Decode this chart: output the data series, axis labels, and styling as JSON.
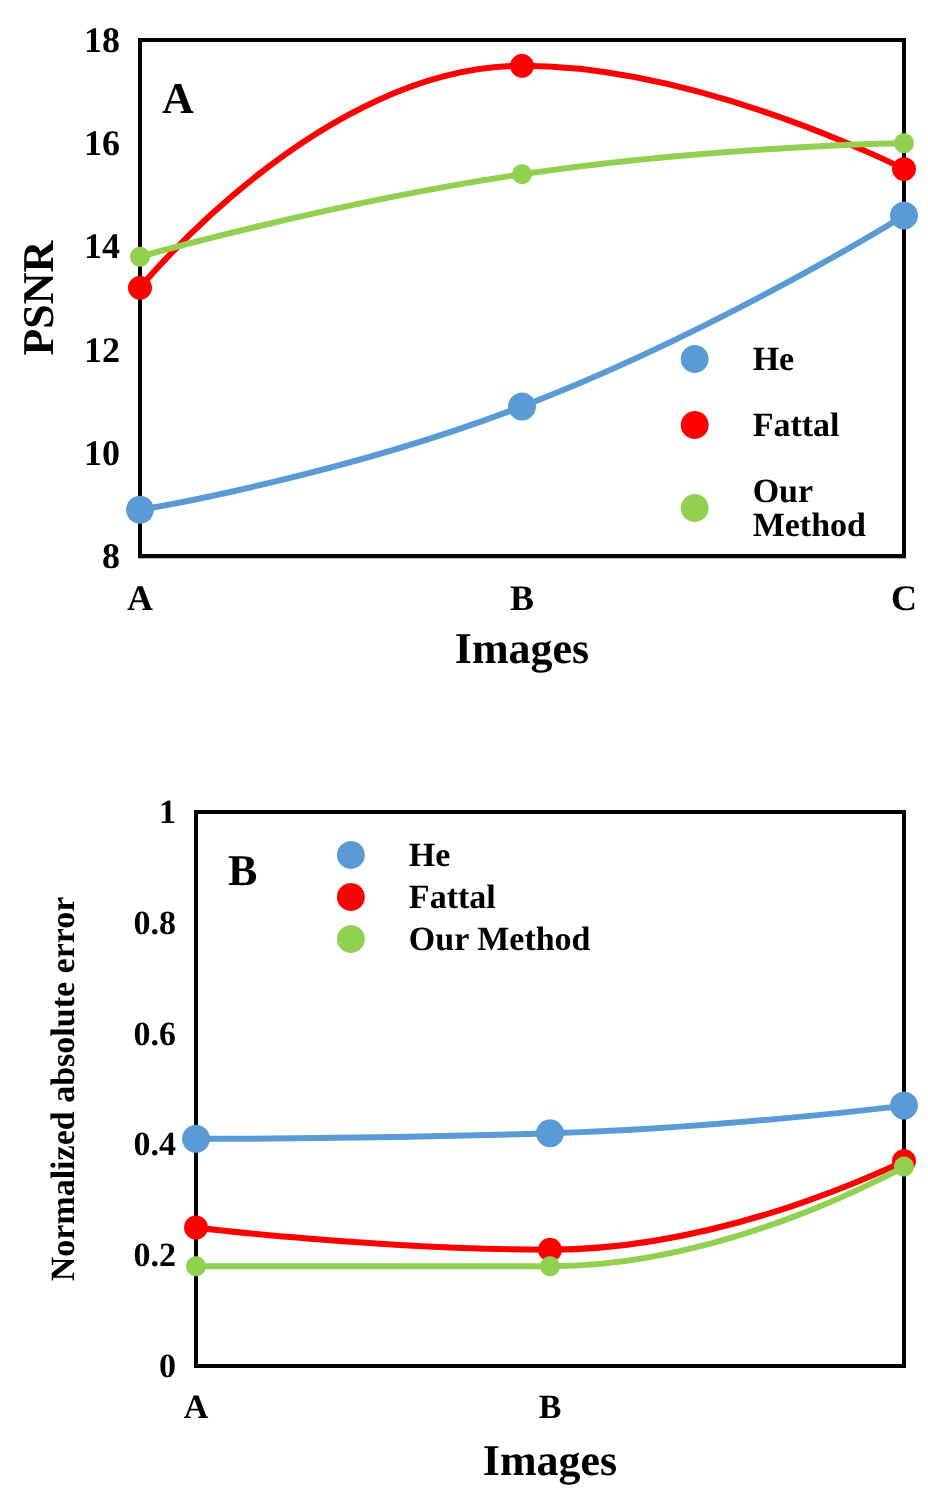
{
  "chart_data": [
    {
      "type": "line",
      "categories": [
        "A",
        "B",
        "C"
      ],
      "xlabel": "Images",
      "ylabel": "PSNR",
      "annotations": [
        "A"
      ],
      "ylim": [
        8,
        18
      ],
      "yticks": [
        8,
        10,
        12,
        14,
        16,
        18
      ],
      "grid": false,
      "legend": "bottom right",
      "marker": "circle",
      "line_style": "solid",
      "series": [
        {
          "name": "He",
          "color": "#5b9bd5",
          "values": [
            8.9,
            10.9,
            14.6
          ]
        },
        {
          "name": "Fattal",
          "color": "#ff0000",
          "values": [
            13.2,
            17.5,
            15.5
          ]
        },
        {
          "name": "Our Method",
          "color": "#92d050",
          "values": [
            13.8,
            15.4,
            16.0
          ]
        }
      ]
    },
    {
      "type": "line",
      "categories": [
        "A",
        "B",
        null
      ],
      "xlabel": "Images",
      "ylabel": "Normalized absolute error",
      "annotations": [
        "B"
      ],
      "ylim": [
        0,
        1
      ],
      "yticks": [
        0,
        0.2,
        0.4,
        0.6,
        0.8,
        1
      ],
      "grid": false,
      "legend": "top",
      "marker": "circle",
      "line_style": "solid",
      "series": [
        {
          "name": "He",
          "color": "#5b9bd5",
          "values": [
            0.41,
            0.42,
            0.47
          ]
        },
        {
          "name": "Fattal",
          "color": "#ff0000",
          "values": [
            0.25,
            0.21,
            0.37
          ]
        },
        {
          "name": "Our Method",
          "color": "#92d050",
          "values": [
            0.18,
            0.18,
            0.36
          ]
        }
      ]
    }
  ]
}
